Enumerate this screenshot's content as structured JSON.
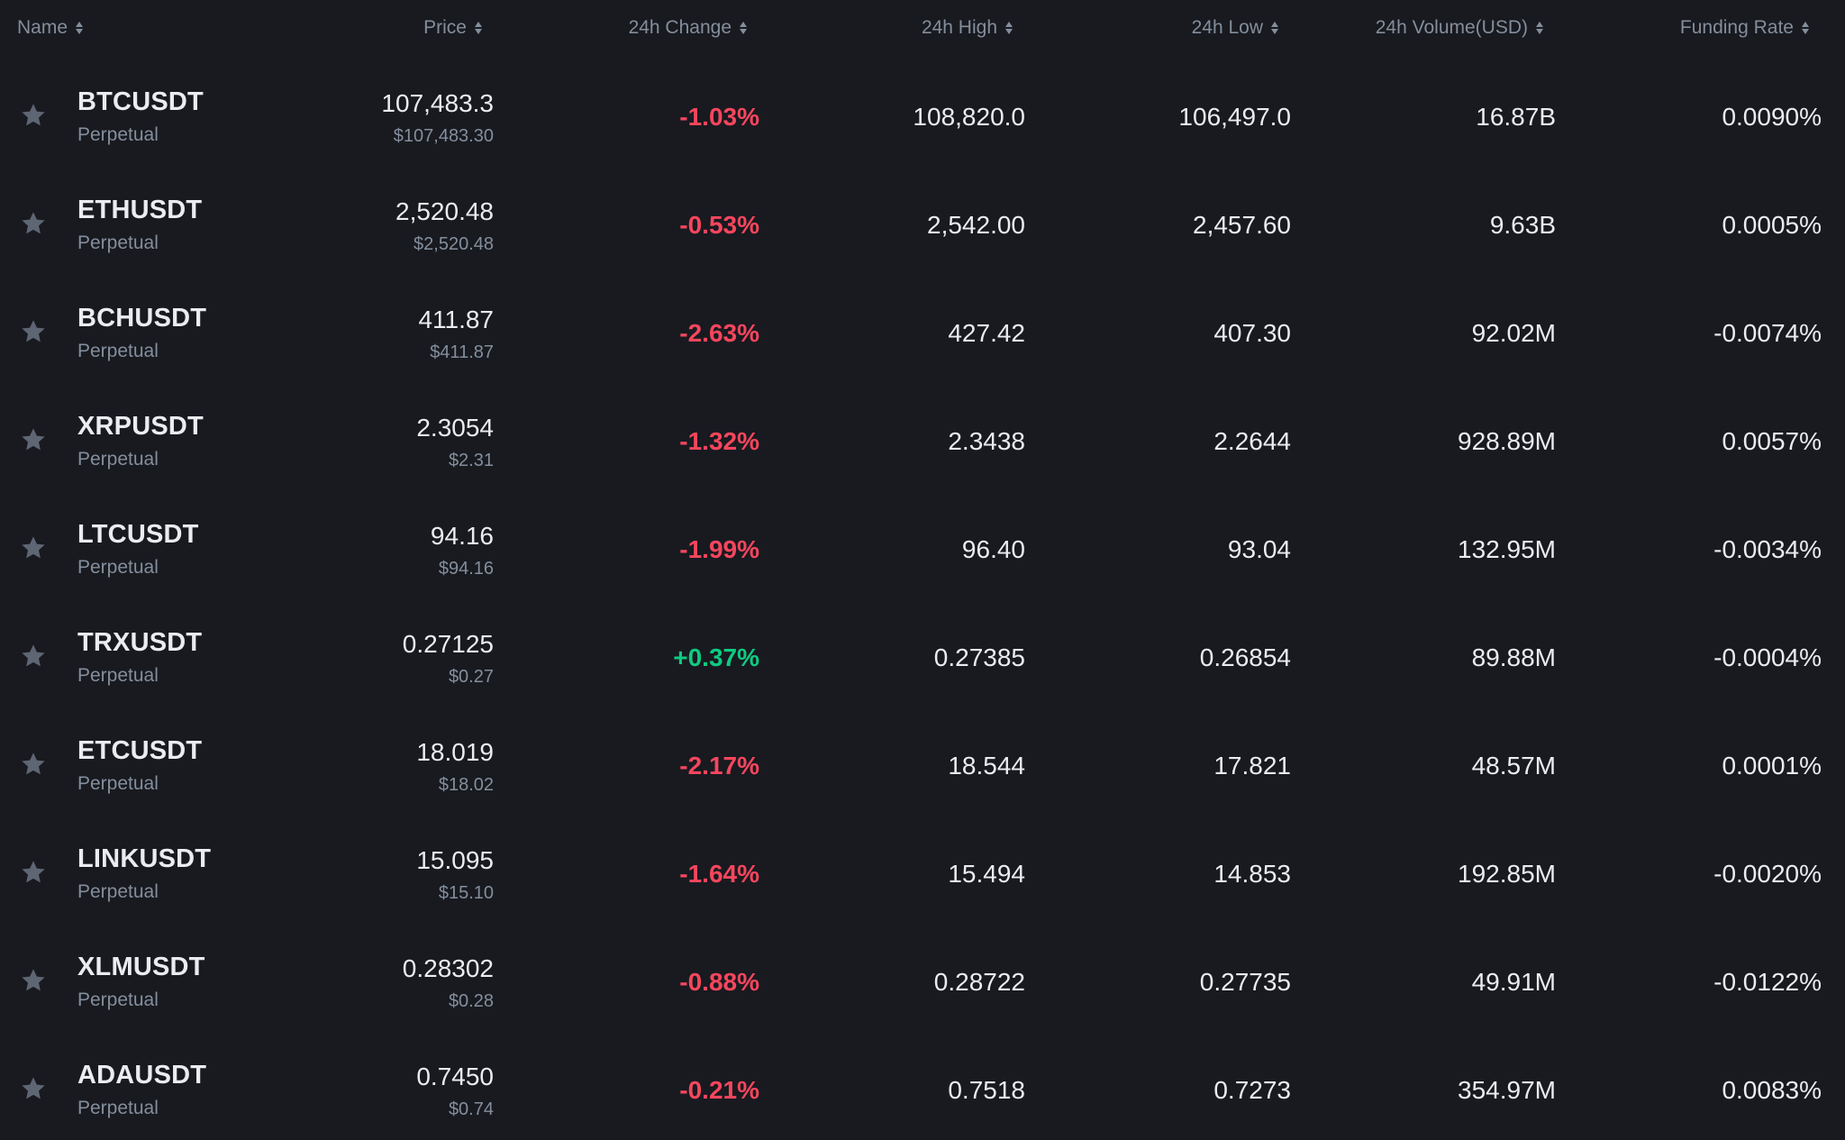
{
  "header": {
    "name": "Name",
    "price": "Price",
    "change": "24h Change",
    "high": "24h High",
    "low": "24h Low",
    "volume": "24h Volume(USD)",
    "funding": "Funding Rate"
  },
  "colors": {
    "background": "#181a20",
    "text": "#eaecef",
    "muted": "#848e9c",
    "negative": "#f6465d",
    "positive": "#0ecb81",
    "star": "#5e6673"
  },
  "rows": [
    {
      "symbol": "BTCUSDT",
      "type": "Perpetual",
      "price": "107,483.3",
      "price_usd": "$107,483.30",
      "change": "-1.03%",
      "direction": "neg",
      "high": "108,820.0",
      "low": "106,497.0",
      "volume": "16.87B",
      "funding": "0.0090%"
    },
    {
      "symbol": "ETHUSDT",
      "type": "Perpetual",
      "price": "2,520.48",
      "price_usd": "$2,520.48",
      "change": "-0.53%",
      "direction": "neg",
      "high": "2,542.00",
      "low": "2,457.60",
      "volume": "9.63B",
      "funding": "0.0005%"
    },
    {
      "symbol": "BCHUSDT",
      "type": "Perpetual",
      "price": "411.87",
      "price_usd": "$411.87",
      "change": "-2.63%",
      "direction": "neg",
      "high": "427.42",
      "low": "407.30",
      "volume": "92.02M",
      "funding": "-0.0074%"
    },
    {
      "symbol": "XRPUSDT",
      "type": "Perpetual",
      "price": "2.3054",
      "price_usd": "$2.31",
      "change": "-1.32%",
      "direction": "neg",
      "high": "2.3438",
      "low": "2.2644",
      "volume": "928.89M",
      "funding": "0.0057%"
    },
    {
      "symbol": "LTCUSDT",
      "type": "Perpetual",
      "price": "94.16",
      "price_usd": "$94.16",
      "change": "-1.99%",
      "direction": "neg",
      "high": "96.40",
      "low": "93.04",
      "volume": "132.95M",
      "funding": "-0.0034%"
    },
    {
      "symbol": "TRXUSDT",
      "type": "Perpetual",
      "price": "0.27125",
      "price_usd": "$0.27",
      "change": "+0.37%",
      "direction": "pos",
      "high": "0.27385",
      "low": "0.26854",
      "volume": "89.88M",
      "funding": "-0.0004%"
    },
    {
      "symbol": "ETCUSDT",
      "type": "Perpetual",
      "price": "18.019",
      "price_usd": "$18.02",
      "change": "-2.17%",
      "direction": "neg",
      "high": "18.544",
      "low": "17.821",
      "volume": "48.57M",
      "funding": "0.0001%"
    },
    {
      "symbol": "LINKUSDT",
      "type": "Perpetual",
      "price": "15.095",
      "price_usd": "$15.10",
      "change": "-1.64%",
      "direction": "neg",
      "high": "15.494",
      "low": "14.853",
      "volume": "192.85M",
      "funding": "-0.0020%"
    },
    {
      "symbol": "XLMUSDT",
      "type": "Perpetual",
      "price": "0.28302",
      "price_usd": "$0.28",
      "change": "-0.88%",
      "direction": "neg",
      "high": "0.28722",
      "low": "0.27735",
      "volume": "49.91M",
      "funding": "-0.0122%"
    },
    {
      "symbol": "ADAUSDT",
      "type": "Perpetual",
      "price": "0.7450",
      "price_usd": "$0.74",
      "change": "-0.21%",
      "direction": "neg",
      "high": "0.7518",
      "low": "0.7273",
      "volume": "354.97M",
      "funding": "0.0083%"
    }
  ]
}
